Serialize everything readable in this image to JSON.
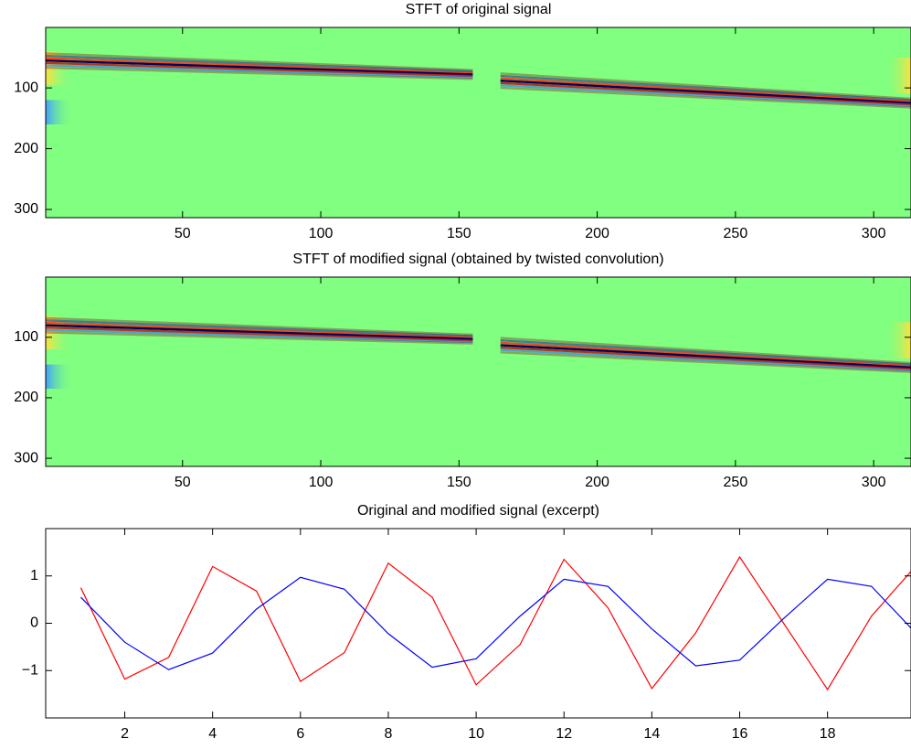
{
  "chart_data": [
    {
      "type": "image",
      "title": "STFT of original signal",
      "xlim": [
        0.5,
        313.5
      ],
      "ylim": [
        313.5,
        0.5
      ],
      "xticks": [
        50,
        100,
        150,
        200,
        250,
        300
      ],
      "yticks": [
        100,
        200,
        300
      ]
    },
    {
      "type": "image",
      "title": "STFT of modified signal (obtained by twisted convolution)",
      "xlim": [
        0.5,
        313.5
      ],
      "ylim": [
        313.5,
        0.5
      ],
      "xticks": [
        50,
        100,
        150,
        200,
        250,
        300
      ],
      "yticks": [
        100,
        200,
        300
      ]
    },
    {
      "type": "line",
      "title": "Original and modified signal (excerpt)",
      "x": [
        1,
        2,
        3,
        4,
        5,
        6,
        7,
        8,
        9,
        10,
        11,
        12,
        13,
        14,
        15,
        16,
        17,
        18,
        19,
        20
      ],
      "series": [
        {
          "color": "#ff0000",
          "values": [
            0.75,
            -1.18,
            -0.72,
            1.2,
            0.68,
            -1.23,
            -0.62,
            1.27,
            0.55,
            -1.3,
            -0.45,
            1.35,
            0.33,
            -1.38,
            -0.2,
            1.4,
            0.0,
            -1.4,
            0.15,
            1.2
          ]
        },
        {
          "color": "#0000ff",
          "values": [
            0.55,
            -0.4,
            -0.98,
            -0.63,
            0.3,
            0.97,
            0.72,
            -0.22,
            -0.93,
            -0.75,
            0.15,
            0.93,
            0.78,
            -0.12,
            -0.9,
            -0.78,
            0.1,
            0.93,
            0.78,
            -0.2
          ]
        }
      ],
      "xlim": [
        0.2,
        19.9
      ],
      "ylim": [
        -2,
        2
      ],
      "xticks": [
        2,
        4,
        6,
        8,
        10,
        12,
        14,
        16,
        18
      ],
      "yticks": [
        -1,
        0,
        1
      ]
    }
  ]
}
